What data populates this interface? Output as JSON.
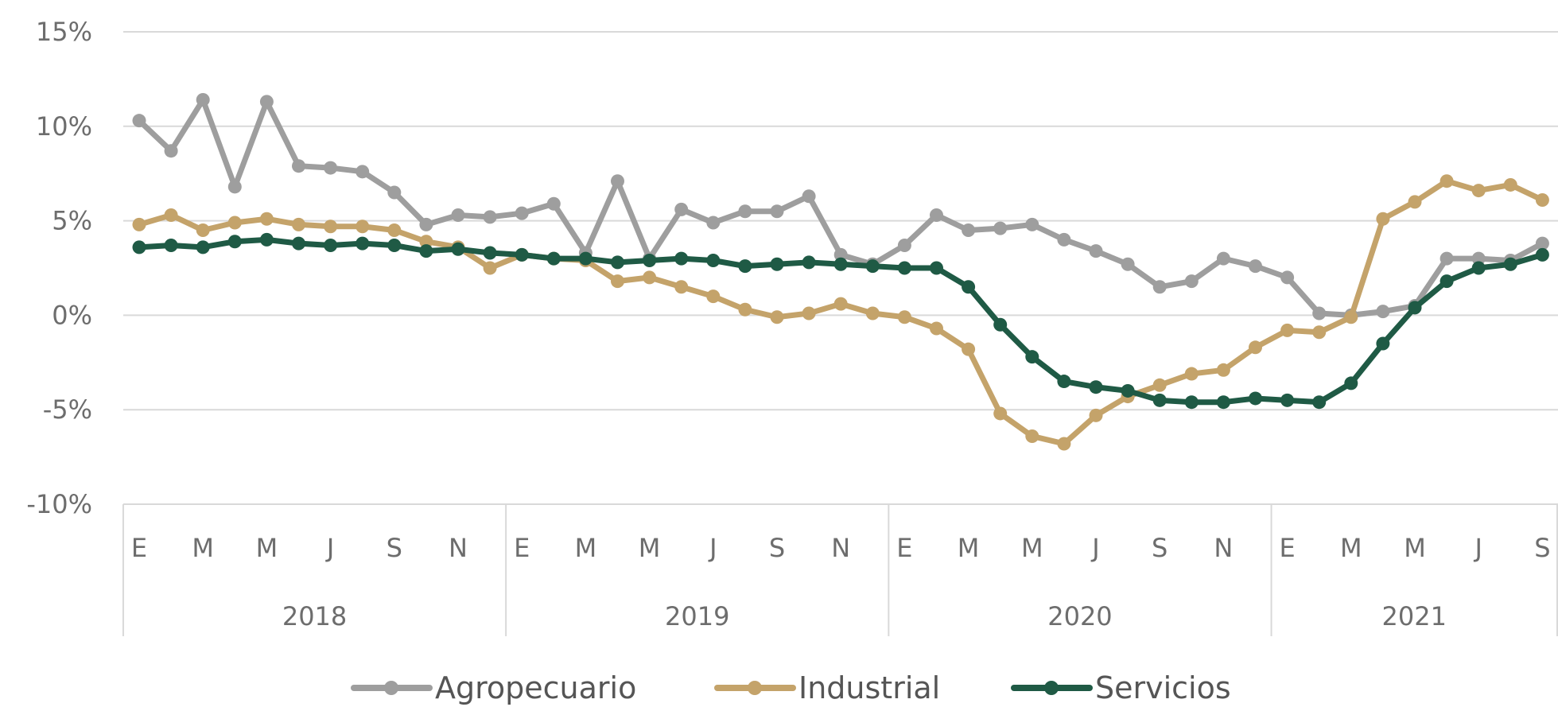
{
  "chart_data": {
    "type": "line",
    "title": "",
    "xlabel": "",
    "ylabel": "",
    "ylim": [
      -10,
      15
    ],
    "yticks": [
      "15%",
      "10%",
      "5%",
      "0%",
      "-5%",
      "-10%"
    ],
    "ytick_values": [
      15,
      10,
      5,
      0,
      -5,
      -10
    ],
    "grid": "horizontal",
    "legend_position": "bottom",
    "month_tick_labels": [
      "E",
      "M",
      "M",
      "J",
      "S",
      "N"
    ],
    "years": [
      "2018",
      "2019",
      "2020",
      "2021"
    ],
    "x": [
      "2018-01",
      "2018-02",
      "2018-03",
      "2018-04",
      "2018-05",
      "2018-06",
      "2018-07",
      "2018-08",
      "2018-09",
      "2018-10",
      "2018-11",
      "2018-12",
      "2019-01",
      "2019-02",
      "2019-03",
      "2019-04",
      "2019-05",
      "2019-06",
      "2019-07",
      "2019-08",
      "2019-09",
      "2019-10",
      "2019-11",
      "2019-12",
      "2020-01",
      "2020-02",
      "2020-03",
      "2020-04",
      "2020-05",
      "2020-06",
      "2020-07",
      "2020-08",
      "2020-09",
      "2020-10",
      "2020-11",
      "2020-12",
      "2021-01",
      "2021-02",
      "2021-03",
      "2021-04",
      "2021-05",
      "2021-06",
      "2021-07",
      "2021-08",
      "2021-09"
    ],
    "series": [
      {
        "name": "Agropecuario",
        "color": "#9e9e9e",
        "values": [
          10.3,
          8.7,
          11.4,
          6.8,
          11.3,
          7.9,
          7.8,
          7.6,
          6.5,
          4.8,
          5.3,
          5.2,
          5.4,
          5.9,
          3.3,
          7.1,
          3.0,
          5.6,
          4.9,
          5.5,
          5.5,
          6.3,
          3.2,
          2.7,
          3.7,
          5.3,
          4.5,
          4.6,
          4.8,
          4.0,
          3.4,
          2.7,
          1.5,
          1.8,
          3.0,
          2.6,
          2.0,
          0.1,
          0.0,
          0.2,
          0.5,
          3.0,
          3.0,
          2.9,
          3.8
        ]
      },
      {
        "name": "Industrial",
        "color": "#c4a36a",
        "values": [
          4.8,
          5.3,
          4.5,
          4.9,
          5.1,
          4.8,
          4.7,
          4.7,
          4.5,
          3.9,
          3.6,
          2.5,
          3.2,
          3.0,
          2.9,
          1.8,
          2.0,
          1.5,
          1.0,
          0.3,
          -0.1,
          0.1,
          0.6,
          0.1,
          -0.1,
          -0.7,
          -1.8,
          -5.2,
          -6.4,
          -6.8,
          -5.3,
          -4.3,
          -3.7,
          -3.1,
          -2.9,
          -1.7,
          -0.8,
          -0.9,
          -0.1,
          5.1,
          6.0,
          7.1,
          6.6,
          6.9,
          6.1
        ]
      },
      {
        "name": "Servicios",
        "color": "#1f5a45",
        "values": [
          3.6,
          3.7,
          3.6,
          3.9,
          4.0,
          3.8,
          3.7,
          3.8,
          3.7,
          3.4,
          3.5,
          3.3,
          3.2,
          3.0,
          3.0,
          2.8,
          2.9,
          3.0,
          2.9,
          2.6,
          2.7,
          2.8,
          2.7,
          2.6,
          2.5,
          2.5,
          1.5,
          -0.5,
          -2.2,
          -3.5,
          -3.8,
          -4.0,
          -4.5,
          -4.6,
          -4.6,
          -4.4,
          -4.5,
          -4.6,
          -3.6,
          -1.5,
          0.4,
          1.8,
          2.5,
          2.7,
          3.2
        ]
      }
    ]
  }
}
